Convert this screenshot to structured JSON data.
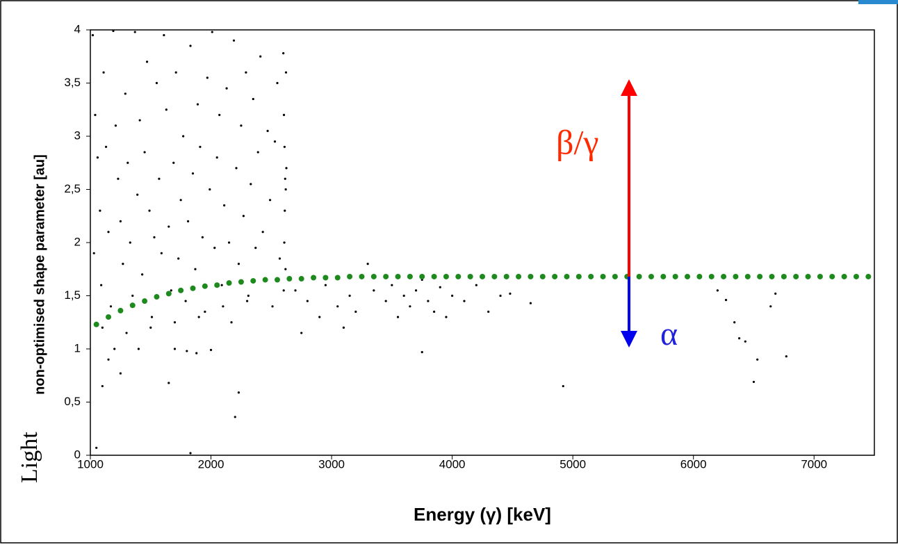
{
  "chart_data": {
    "type": "scatter",
    "x_label": "Energy (γ)  [keV]",
    "y_label": "non-optimised shape parameter  [au]",
    "y_label_prefix": "Light",
    "annotations": [
      "β/γ",
      "α"
    ],
    "xlim": [
      1000,
      7500
    ],
    "ylim": [
      0,
      4
    ],
    "xticks": [
      1000,
      2000,
      3000,
      4000,
      5000,
      6000,
      7000
    ],
    "yticks": [
      0,
      {
        "value": 0.5,
        "label": "0,5"
      },
      1,
      {
        "value": 1.5,
        "label": "1,5"
      },
      2,
      {
        "value": 2.5,
        "label": "2,5"
      },
      3,
      {
        "value": 3.5,
        "label": "3,5"
      },
      4
    ],
    "grid": false,
    "series": [
      {
        "color": "#000000",
        "x": [
          1020,
          1040,
          1060,
          1080,
          1030,
          1090,
          1110,
          1130,
          1150,
          1170,
          1190,
          1210,
          1230,
          1250,
          1270,
          1290,
          1310,
          1330,
          1350,
          1370,
          1390,
          1410,
          1430,
          1450,
          1470,
          1490,
          1510,
          1530,
          1550,
          1570,
          1590,
          1610,
          1630,
          1650,
          1670,
          1690,
          1710,
          1730,
          1750,
          1770,
          1790,
          1810,
          1830,
          1850,
          1870,
          1890,
          1910,
          1930,
          1950,
          1970,
          1990,
          2010,
          2030,
          2050,
          2070,
          2090,
          2110,
          2130,
          2150,
          2170,
          2190,
          2210,
          2230,
          2250,
          2270,
          2290,
          2310,
          2330,
          2350,
          2370,
          2390,
          2410,
          2430,
          2450,
          2470,
          2490,
          2510,
          2530,
          2550,
          2570,
          2600,
          2605,
          2610,
          2615,
          2620,
          2612,
          2608,
          2618,
          2625,
          2603,
          2622,
          1100,
          1300,
          1500,
          1700,
          1900,
          2100,
          2300,
          1400,
          2700,
          2800,
          2900,
          2950,
          3050,
          3150,
          3200,
          3300,
          3350,
          3450,
          3500,
          3550,
          3600,
          3650,
          3700,
          3750,
          3800,
          3850,
          3950,
          4000,
          4100,
          4200,
          4300,
          4400,
          2750,
          3100,
          3900,
          1050,
          1830,
          2200,
          2230,
          1650,
          4920,
          3750,
          6500,
          6530,
          6770,
          6380,
          6340,
          6200,
          6270,
          6680,
          6640,
          6430,
          4650,
          4480,
          1100,
          1150,
          1200,
          1250,
          1800,
          1880,
          2000,
          1700
        ],
        "values": [
          3.95,
          3.2,
          2.8,
          2.3,
          1.9,
          1.6,
          3.6,
          2.9,
          2.1,
          1.4,
          3.99,
          3.1,
          2.6,
          2.2,
          1.8,
          3.4,
          2.75,
          2.0,
          1.5,
          3.98,
          2.45,
          3.15,
          1.7,
          2.85,
          3.7,
          2.3,
          1.3,
          2.05,
          3.5,
          2.6,
          1.9,
          3.95,
          3.25,
          2.15,
          1.55,
          2.75,
          3.6,
          1.85,
          2.4,
          3.0,
          1.45,
          2.2,
          3.85,
          2.65,
          1.75,
          3.3,
          2.9,
          2.05,
          1.35,
          3.55,
          2.5,
          3.98,
          1.95,
          2.8,
          3.2,
          1.6,
          2.35,
          3.45,
          2.0,
          1.25,
          3.9,
          2.7,
          1.8,
          3.1,
          2.25,
          3.6,
          1.5,
          2.55,
          3.35,
          1.95,
          2.85,
          3.75,
          2.1,
          1.65,
          3.05,
          2.4,
          1.4,
          2.95,
          3.5,
          1.85,
          3.78,
          3.2,
          2.9,
          2.6,
          2.5,
          2.3,
          2.0,
          1.75,
          2.7,
          1.55,
          3.6,
          1.2,
          1.15,
          1.2,
          1.25,
          1.3,
          1.4,
          1.45,
          1.0,
          1.55,
          1.45,
          1.3,
          1.6,
          1.4,
          1.5,
          1.35,
          1.8,
          1.55,
          1.45,
          1.6,
          1.3,
          1.5,
          1.4,
          1.55,
          1.65,
          1.45,
          1.35,
          1.3,
          1.5,
          1.45,
          1.6,
          1.35,
          1.5,
          1.15,
          1.2,
          1.58,
          0.07,
          0.02,
          0.36,
          0.59,
          0.68,
          0.65,
          0.97,
          0.69,
          0.9,
          0.93,
          1.1,
          1.25,
          1.55,
          1.46,
          1.52,
          1.4,
          1.07,
          1.43,
          1.52,
          0.65,
          0.9,
          1.0,
          0.77,
          0.98,
          0.96,
          0.99,
          1.0
        ]
      },
      {
        "color": "#1e8a1e",
        "x": [
          1050,
          1150,
          1250,
          1350,
          1450,
          1550,
          1650,
          1750,
          1850,
          1950,
          2050,
          2150,
          2250,
          2350,
          2450,
          2550,
          2650,
          2750,
          2850,
          2950,
          3050,
          3150,
          3250,
          3350,
          3450,
          3550,
          3650,
          3750,
          3850,
          3950,
          4050,
          4150,
          4250,
          4350,
          4450,
          4550,
          4650,
          4750,
          4850,
          4950,
          5050,
          5150,
          5250,
          5350,
          5450,
          5550,
          5650,
          5750,
          5850,
          5950,
          6050,
          6150,
          6250,
          6350,
          6450,
          6550,
          6650,
          6750,
          6850,
          6950,
          7050,
          7150,
          7250,
          7350,
          7450
        ],
        "values": [
          1.23,
          1.3,
          1.36,
          1.41,
          1.45,
          1.49,
          1.52,
          1.55,
          1.57,
          1.59,
          1.6,
          1.62,
          1.63,
          1.64,
          1.65,
          1.65,
          1.66,
          1.66,
          1.67,
          1.67,
          1.67,
          1.68,
          1.68,
          1.68,
          1.68,
          1.68,
          1.68,
          1.68,
          1.68,
          1.68,
          1.68,
          1.68,
          1.68,
          1.68,
          1.68,
          1.68,
          1.68,
          1.68,
          1.68,
          1.68,
          1.68,
          1.68,
          1.68,
          1.68,
          1.68,
          1.68,
          1.68,
          1.68,
          1.68,
          1.68,
          1.68,
          1.68,
          1.68,
          1.68,
          1.68,
          1.68,
          1.68,
          1.68,
          1.68,
          1.68,
          1.68,
          1.68,
          1.68,
          1.68,
          1.68
        ]
      }
    ]
  }
}
